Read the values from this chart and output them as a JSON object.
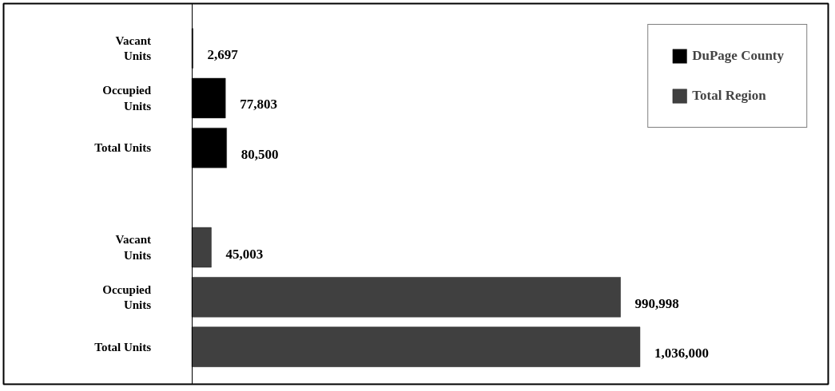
{
  "chart_data": {
    "type": "bar",
    "orientation": "horizontal",
    "categories": [
      "Vacant Units",
      "Occupied Units",
      "Total Units",
      null,
      "Vacant Units",
      "Occupied Units",
      "Total Units"
    ],
    "series": [
      {
        "name": "DuPage County",
        "color": "#000000",
        "values": [
          2697,
          77803,
          80500,
          null,
          null,
          null,
          null
        ],
        "value_labels": [
          "2,697",
          "77,803",
          "80,500",
          null,
          null,
          null,
          null
        ]
      },
      {
        "name": "Total Region",
        "color": "#404040",
        "values": [
          null,
          null,
          null,
          null,
          45003,
          990998,
          1036000
        ],
        "value_labels": [
          null,
          null,
          null,
          null,
          "45,003",
          "990,998",
          "1,036,000"
        ]
      }
    ],
    "legend": "top right",
    "grid": false
  }
}
